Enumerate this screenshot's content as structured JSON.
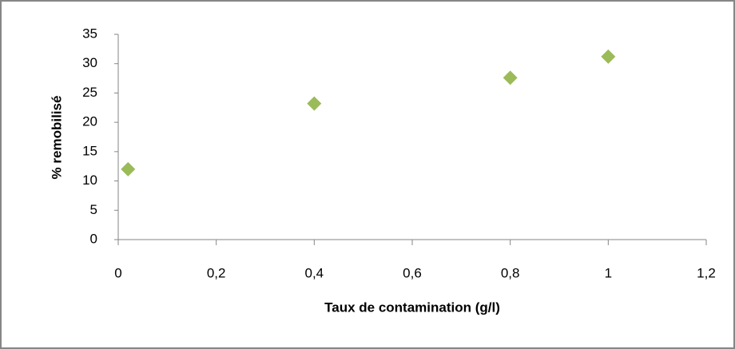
{
  "chart_data": {
    "type": "scatter",
    "xlabel": "Taux de contamination (g/l)",
    "ylabel": "% remobilisé",
    "series": [
      {
        "color": "#9bbb59",
        "x": [
          0.02,
          0.4,
          0.8,
          1
        ],
        "values": [
          12,
          23.2,
          27.6,
          31.2
        ]
      }
    ],
    "xlim": [
      0,
      1.2
    ],
    "xticks": [
      0,
      {
        "value": 0.2,
        "label": "0,2"
      },
      {
        "value": 0.4,
        "label": "0,4"
      },
      {
        "value": 0.6,
        "label": "0,6"
      },
      {
        "value": 0.8,
        "label": "0,8"
      },
      1,
      {
        "value": 1.2,
        "label": "1,2"
      }
    ],
    "ylim": [
      0,
      35
    ],
    "yticks": [
      0,
      5,
      10,
      15,
      20,
      25,
      30,
      35
    ],
    "grid": false
  }
}
